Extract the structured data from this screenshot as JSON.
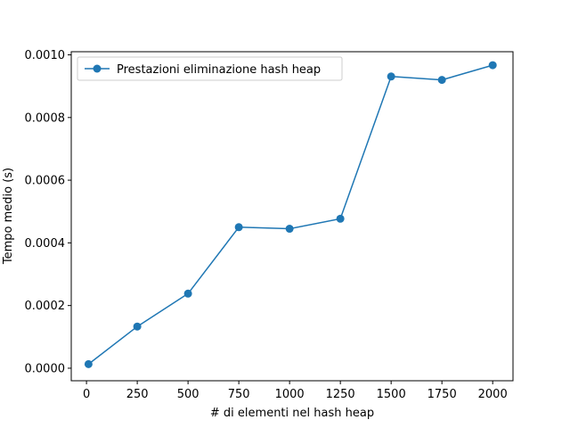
{
  "chart_data": {
    "type": "line",
    "xlabel": "# di elementi nel hash heap",
    "ylabel": "Tempo medio (s)",
    "xlim": [
      -75,
      2100
    ],
    "ylim": [
      -4e-05,
      0.00101
    ],
    "x_ticks": [
      0,
      250,
      500,
      750,
      1000,
      1250,
      1500,
      1750,
      2000
    ],
    "x_tick_labels": [
      "0",
      "250",
      "500",
      "750",
      "1000",
      "1250",
      "1500",
      "1750",
      "2000"
    ],
    "y_ticks": [
      0.0,
      0.0002,
      0.0004,
      0.0006,
      0.0008,
      0.001
    ],
    "y_tick_labels": [
      "0.0000",
      "0.0002",
      "0.0004",
      "0.0006",
      "0.0008",
      "0.0010"
    ],
    "grid": false,
    "legend_position": "top-left",
    "series": [
      {
        "name": "Prestazioni eliminazione hash heap",
        "color": "#1f77b4",
        "marker": "circle",
        "x": [
          10,
          250,
          500,
          750,
          1000,
          1250,
          1500,
          1750,
          2000
        ],
        "y": [
          1.3e-05,
          0.000133,
          0.000238,
          0.00045,
          0.000445,
          0.000477,
          0.000931,
          0.00092,
          0.000967
        ]
      }
    ]
  }
}
